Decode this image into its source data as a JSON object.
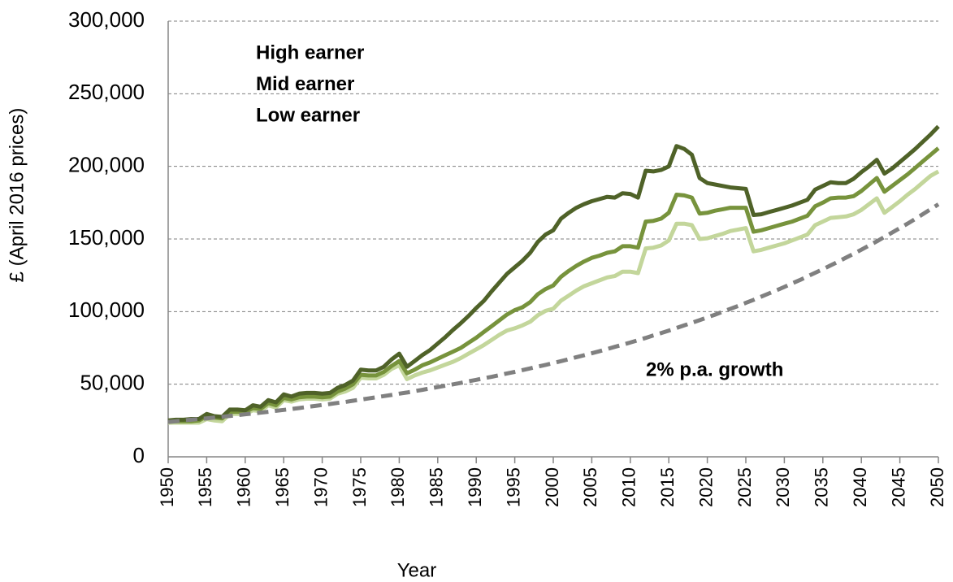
{
  "chart_data": {
    "type": "line",
    "y_label": "£ (April 2016 prices)",
    "x_label": "Year",
    "x": [
      1950,
      1951,
      1952,
      1953,
      1954,
      1955,
      1956,
      1957,
      1958,
      1959,
      1960,
      1961,
      1962,
      1963,
      1964,
      1965,
      1966,
      1967,
      1968,
      1969,
      1970,
      1971,
      1972,
      1973,
      1974,
      1975,
      1976,
      1977,
      1978,
      1979,
      1980,
      1981,
      1982,
      1983,
      1984,
      1985,
      1986,
      1987,
      1988,
      1989,
      1990,
      1991,
      1992,
      1993,
      1994,
      1995,
      1996,
      1997,
      1998,
      1999,
      2000,
      2001,
      2002,
      2003,
      2004,
      2005,
      2006,
      2007,
      2008,
      2009,
      2010,
      2011,
      2012,
      2013,
      2014,
      2015,
      2016,
      2017,
      2018,
      2019,
      2020,
      2021,
      2022,
      2023,
      2024,
      2025,
      2026,
      2027,
      2028,
      2029,
      2030,
      2031,
      2032,
      2033,
      2034,
      2035,
      2036,
      2037,
      2038,
      2039,
      2040,
      2041,
      2042,
      2043,
      2044,
      2045,
      2046,
      2047,
      2048,
      2049,
      2050
    ],
    "series": [
      {
        "name": "High earner",
        "color": "#4f6228",
        "dashed": false,
        "values": [
          25000,
          25500,
          25500,
          26000,
          26000,
          29500,
          28000,
          27500,
          32500,
          32500,
          32000,
          35500,
          34500,
          39000,
          37500,
          43000,
          41500,
          43500,
          44000,
          44000,
          43500,
          44000,
          47500,
          49500,
          52500,
          60000,
          59500,
          59500,
          62000,
          67000,
          71000,
          62000,
          66000,
          70000,
          73500,
          78000,
          82500,
          87500,
          92000,
          97000,
          102500,
          107500,
          114000,
          120000,
          126000,
          130500,
          135000,
          140500,
          148000,
          153000,
          156000,
          164000,
          168000,
          171500,
          174000,
          176000,
          177500,
          179000,
          178500,
          181500,
          181000,
          178500,
          197000,
          196500,
          197500,
          200000,
          214000,
          212000,
          208000,
          192000,
          188500,
          187500,
          186500,
          185500,
          185000,
          184500,
          166500,
          167000,
          168500,
          170000,
          171500,
          173000,
          175000,
          177000,
          184000,
          186500,
          189000,
          188500,
          188500,
          191500,
          196000,
          200000,
          204500,
          195000,
          198500,
          203000,
          207500,
          212000,
          217000,
          222000,
          227500
        ]
      },
      {
        "name": "Mid earner",
        "color": "#77933c",
        "dashed": false,
        "values": [
          24500,
          24500,
          24500,
          24500,
          25000,
          28000,
          27000,
          26500,
          31000,
          31000,
          31000,
          33500,
          33000,
          37000,
          35500,
          40500,
          39500,
          41000,
          41500,
          41500,
          41000,
          41500,
          45000,
          47000,
          50000,
          56500,
          56000,
          56000,
          58500,
          62500,
          66000,
          57500,
          60000,
          63000,
          65000,
          67500,
          70000,
          72500,
          75000,
          78500,
          82000,
          86000,
          90000,
          94000,
          98000,
          101000,
          103000,
          106500,
          112000,
          115500,
          118000,
          124000,
          128000,
          131500,
          134500,
          137000,
          138500,
          140500,
          141500,
          145000,
          145000,
          144000,
          162000,
          162500,
          164000,
          168000,
          180500,
          180000,
          178500,
          167500,
          168000,
          169500,
          170500,
          171500,
          171500,
          171500,
          155000,
          156000,
          157500,
          159000,
          160500,
          162000,
          164000,
          166000,
          172500,
          175000,
          178000,
          178500,
          178500,
          179500,
          183000,
          187500,
          192000,
          182500,
          186500,
          190500,
          194500,
          199000,
          203500,
          208000,
          212500
        ]
      },
      {
        "name": "Low earner",
        "color": "#c3d69b",
        "dashed": false,
        "values": [
          23500,
          23500,
          23500,
          23500,
          23500,
          26000,
          25000,
          24500,
          29500,
          29500,
          29500,
          32000,
          31500,
          35500,
          34000,
          39000,
          38000,
          39500,
          40000,
          40000,
          39500,
          40000,
          43500,
          45000,
          47500,
          54500,
          54000,
          54000,
          56500,
          60500,
          63000,
          53500,
          56000,
          58000,
          59500,
          61500,
          63500,
          65500,
          68000,
          71000,
          74000,
          77000,
          80500,
          84000,
          87000,
          88500,
          90500,
          93000,
          97500,
          100500,
          102000,
          107500,
          111000,
          114500,
          117500,
          119500,
          121500,
          123500,
          124500,
          127500,
          127500,
          126500,
          143500,
          144000,
          145500,
          149000,
          160500,
          160500,
          159500,
          150000,
          150500,
          152000,
          153500,
          155500,
          156500,
          157500,
          141500,
          142500,
          144000,
          145500,
          147000,
          149000,
          151000,
          153000,
          159500,
          162000,
          164500,
          165000,
          165500,
          167000,
          170000,
          174000,
          178000,
          168000,
          172000,
          176000,
          180500,
          184500,
          189000,
          193500,
          196500
        ]
      },
      {
        "name": "2% p.a. growth",
        "color": "#808080",
        "dashed": true,
        "values": [
          24000,
          24500,
          25000,
          25500,
          26000,
          26500,
          27000,
          27600,
          28100,
          28700,
          29300,
          29800,
          30400,
          31000,
          31700,
          32300,
          32900,
          33600,
          34300,
          35000,
          35700,
          36400,
          37100,
          37800,
          38600,
          39400,
          40200,
          41000,
          41800,
          42600,
          43500,
          44300,
          45200,
          46100,
          47100,
          48000,
          49000,
          49900,
          50900,
          52000,
          53000,
          54100,
          55100,
          56200,
          57400,
          58500,
          59700,
          60900,
          62100,
          63300,
          64600,
          65900,
          67200,
          68600,
          69900,
          71300,
          72700,
          74200,
          75700,
          77200,
          78700,
          80300,
          81900,
          83600,
          85200,
          86900,
          88700,
          90500,
          92300,
          94100,
          96000,
          97900,
          99900,
          101900,
          103900,
          106000,
          108100,
          110300,
          112500,
          114700,
          117000,
          119400,
          121700,
          124200,
          126700,
          129200,
          131800,
          134400,
          137100,
          139800,
          142600,
          145500,
          148400,
          151400,
          154400,
          157500,
          160600,
          163800,
          167100,
          170500,
          173900
        ]
      }
    ],
    "xlim": [
      1950,
      2050
    ],
    "xticks": [
      1950,
      1955,
      1960,
      1965,
      1970,
      1975,
      1980,
      1985,
      1990,
      1995,
      2000,
      2005,
      2010,
      2015,
      2020,
      2025,
      2030,
      2035,
      2040,
      2045,
      2050
    ],
    "ylim": [
      0,
      300000
    ],
    "yticks": [
      0,
      {
        "value": 50000,
        "label": "50,000"
      },
      {
        "value": 100000,
        "label": "100,000"
      },
      {
        "value": 150000,
        "label": "150,000"
      },
      {
        "value": 200000,
        "label": "200,000"
      },
      {
        "value": 250000,
        "label": "250,000"
      },
      {
        "value": 300000,
        "label": "300,000"
      }
    ],
    "grid": true
  }
}
